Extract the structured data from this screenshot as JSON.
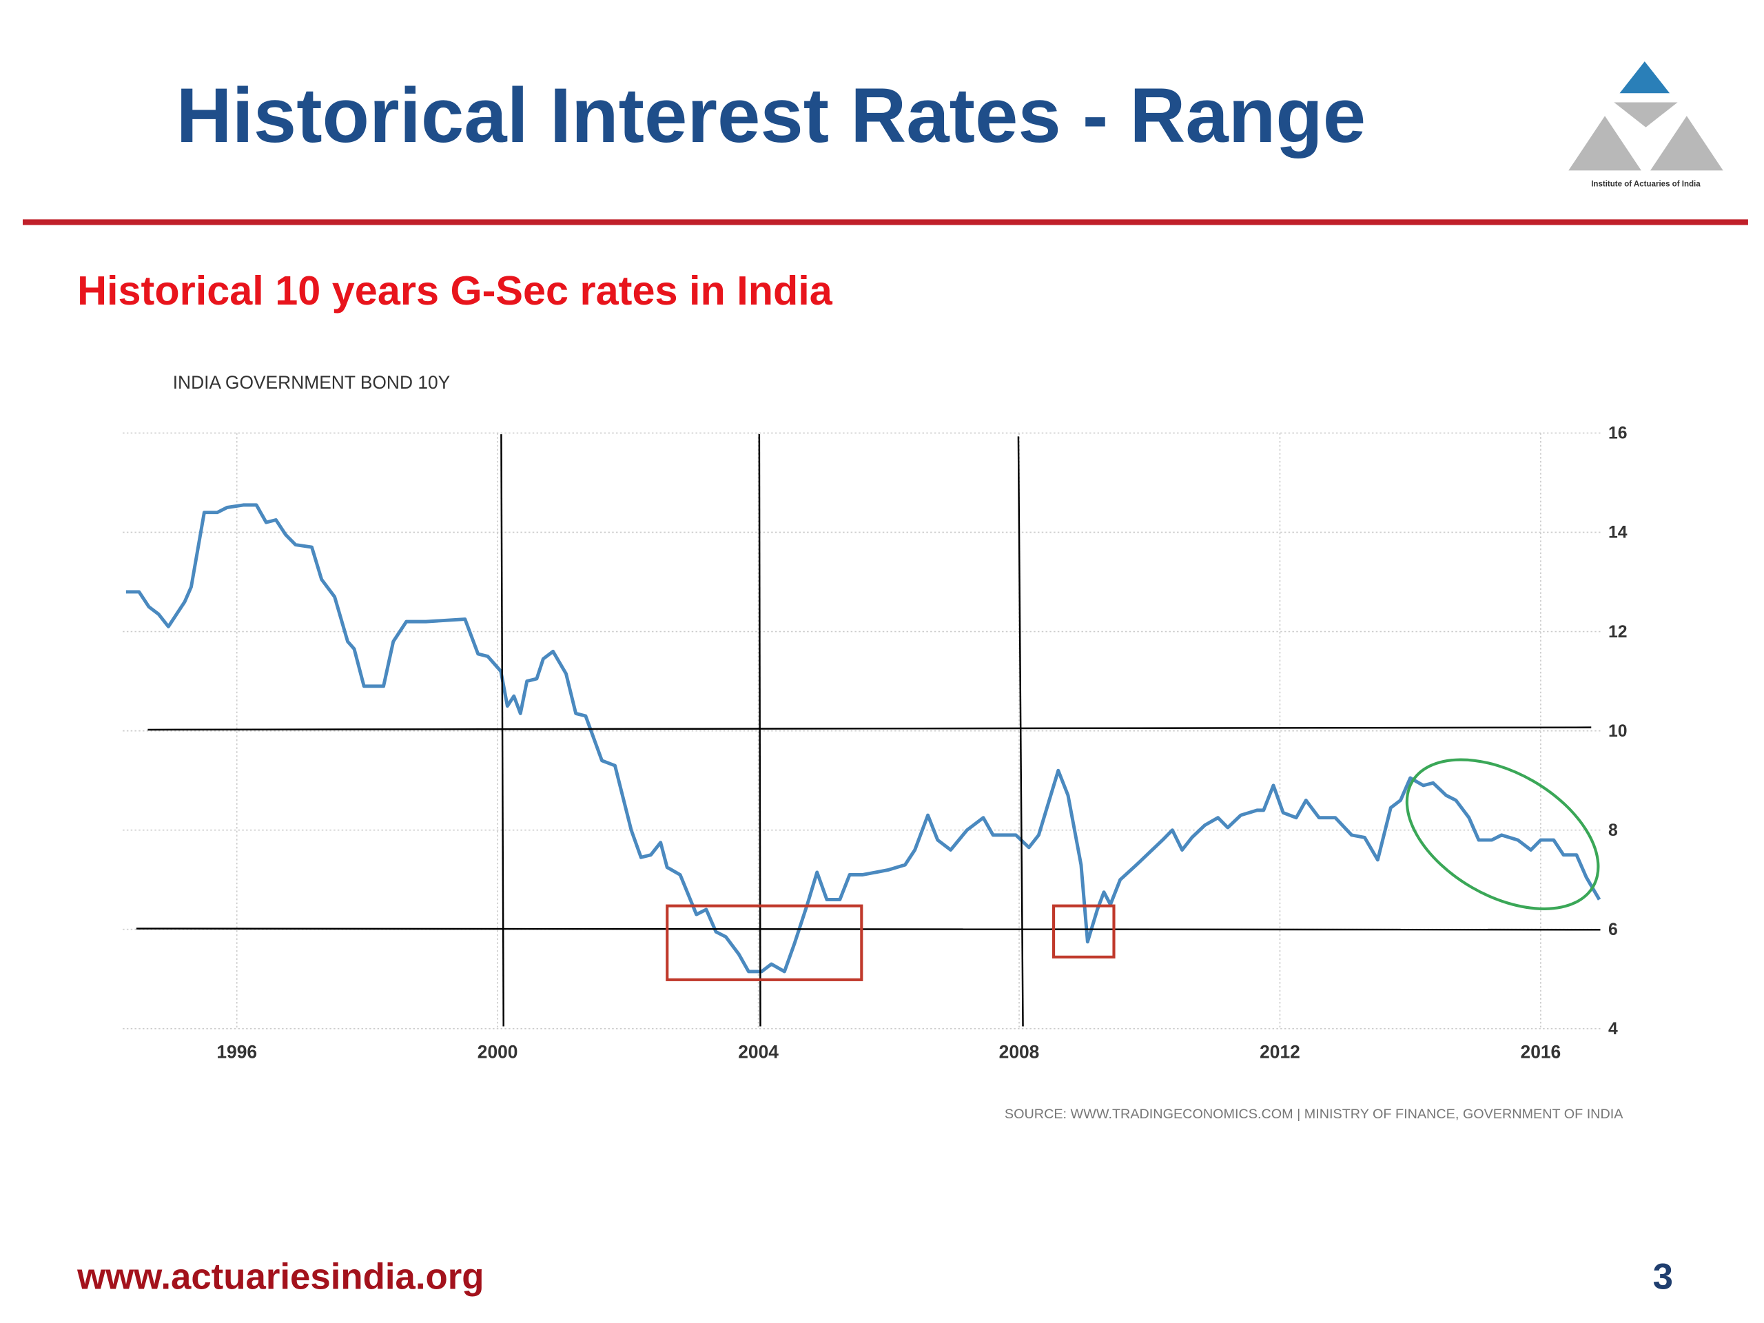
{
  "slide": {
    "title": "Historical Interest Rates - Range",
    "logo_text": "Institute of Actuaries of India",
    "subtitle": "Historical 10 years G-Sec rates in India",
    "footer_url": "www.actuariesindia.org",
    "page_number": "3"
  },
  "chart_data": {
    "type": "line",
    "title": "INDIA GOVERNMENT BOND 10Y",
    "source": "SOURCE: WWW.TRADINGECONOMICS.COM | MINISTRY OF FINANCE, GOVERNMENT OF INDIA",
    "x": [
      1994.3,
      1994.5,
      1994.65,
      1994.8,
      1994.95,
      1995.05,
      1995.2,
      1995.3,
      1995.5,
      1995.7,
      1995.85,
      1996.1,
      1996.3,
      1996.45,
      1996.6,
      1996.75,
      1996.9,
      1997.15,
      1997.3,
      1997.5,
      1997.7,
      1997.8,
      1997.95,
      1998.25,
      1998.4,
      1998.6,
      1998.9,
      1999.5,
      1999.7,
      1999.85,
      2000.05,
      2000.15,
      2000.25,
      2000.35,
      2000.45,
      2000.6,
      2000.7,
      2000.85,
      2001.05,
      2001.2,
      2001.35,
      2001.6,
      2001.8,
      2002.05,
      2002.2,
      2002.35,
      2002.5,
      2002.6,
      2002.8,
      2003.05,
      2003.2,
      2003.35,
      2003.5,
      2003.7,
      2003.85,
      2004.05,
      2004.2,
      2004.4,
      2004.55,
      2004.75,
      2004.9,
      2005.05,
      2005.25,
      2005.4,
      2005.6,
      2005.8,
      2006.0,
      2006.25,
      2006.4,
      2006.6,
      2006.75,
      2006.95,
      2007.2,
      2007.45,
      2007.6,
      2007.95,
      2008.15,
      2008.3,
      2008.6,
      2008.75,
      2008.95,
      2009.05,
      2009.2,
      2009.3,
      2009.4,
      2009.55,
      2009.8,
      2010.0,
      2010.2,
      2010.35,
      2010.5,
      2010.65,
      2010.85,
      2011.05,
      2011.2,
      2011.4,
      2011.65,
      2011.75,
      2011.9,
      2012.05,
      2012.25,
      2012.4,
      2012.6,
      2012.85,
      2013.1,
      2013.3,
      2013.5,
      2013.7,
      2013.85,
      2014.0,
      2014.2,
      2014.35,
      2014.55,
      2014.7,
      2014.9,
      2015.05,
      2015.25,
      2015.4,
      2015.65,
      2015.85,
      2016.0,
      2016.2,
      2016.35,
      2016.55,
      2016.7,
      2016.9
    ],
    "series": [
      {
        "name": "India Government Bond 10Y",
        "color": "#4a89bf",
        "values": [
          12.8,
          12.8,
          12.5,
          12.35,
          12.1,
          12.3,
          12.6,
          12.9,
          14.4,
          14.4,
          14.5,
          14.55,
          14.55,
          14.2,
          14.25,
          13.95,
          13.75,
          13.7,
          13.05,
          12.7,
          11.8,
          11.65,
          10.9,
          10.9,
          11.8,
          12.2,
          12.2,
          12.25,
          11.55,
          11.5,
          11.2,
          10.5,
          10.7,
          10.35,
          11.0,
          11.05,
          11.45,
          11.6,
          11.15,
          10.35,
          10.3,
          9.4,
          9.3,
          8.0,
          7.45,
          7.5,
          7.75,
          7.25,
          7.1,
          6.3,
          6.4,
          5.95,
          5.85,
          5.5,
          5.15,
          5.15,
          5.3,
          5.15,
          5.7,
          6.5,
          7.15,
          6.6,
          6.6,
          7.1,
          7.1,
          7.15,
          7.2,
          7.3,
          7.6,
          8.3,
          7.8,
          7.6,
          8.0,
          8.25,
          7.9,
          7.9,
          7.65,
          7.9,
          9.2,
          8.7,
          7.3,
          5.75,
          6.4,
          6.75,
          6.5,
          7.0,
          7.3,
          7.55,
          7.8,
          8.0,
          7.6,
          7.85,
          8.1,
          8.25,
          8.05,
          8.3,
          8.4,
          8.4,
          8.9,
          8.35,
          8.25,
          8.6,
          8.25,
          8.25,
          7.9,
          7.85,
          7.4,
          8.45,
          8.6,
          9.05,
          8.9,
          8.95,
          8.7,
          8.6,
          8.25,
          7.8,
          7.8,
          7.9,
          7.8,
          7.6,
          7.8,
          7.8,
          7.5,
          7.5,
          7.05,
          6.6
        ]
      }
    ],
    "xlim": [
      1994.25,
      2016.95
    ],
    "xticks": [
      1996,
      2000,
      2004,
      2008,
      2012,
      2016
    ],
    "ylim": [
      4,
      16
    ],
    "yticks": [
      4,
      6,
      8,
      10,
      12,
      14,
      16
    ],
    "grid": true
  }
}
